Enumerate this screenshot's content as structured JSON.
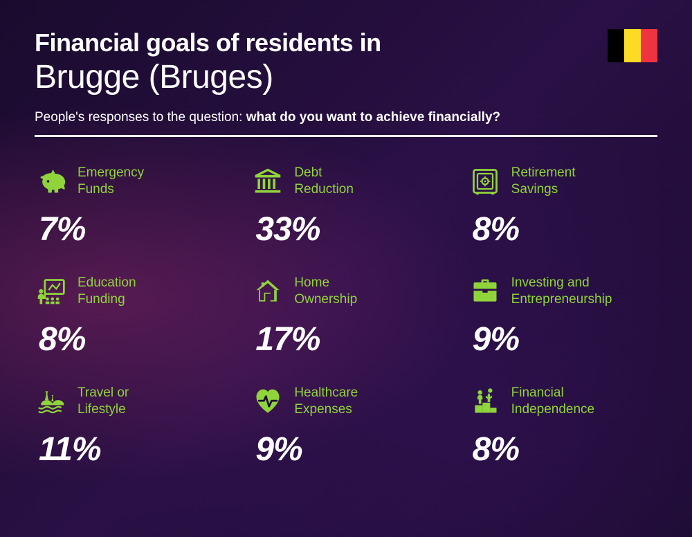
{
  "colors": {
    "accent": "#8fd43a",
    "text": "#ffffff",
    "flag": [
      "#000000",
      "#fdda24",
      "#ef3340"
    ]
  },
  "header": {
    "title_prefix": "Financial goals of residents in",
    "city": "Brugge (Bruges)",
    "subtitle_lead": "People's responses to the question: ",
    "subtitle_bold": "what do you want to achieve financially?"
  },
  "items": [
    {
      "icon": "piggy",
      "label": "Emergency Funds",
      "value": "7%"
    },
    {
      "icon": "bank",
      "label": "Debt Reduction",
      "value": "33%"
    },
    {
      "icon": "safe",
      "label": "Retirement Savings",
      "value": "8%"
    },
    {
      "icon": "education",
      "label": "Education Funding",
      "value": "8%"
    },
    {
      "icon": "home",
      "label": "Home Ownership",
      "value": "17%"
    },
    {
      "icon": "briefcase",
      "label": "Investing and Entrepreneurship",
      "value": "9%"
    },
    {
      "icon": "travel",
      "label": "Travel or Lifestyle",
      "value": "11%"
    },
    {
      "icon": "health",
      "label": "Healthcare Expenses",
      "value": "9%"
    },
    {
      "icon": "podium",
      "label": "Financial Independence",
      "value": "8%"
    }
  ]
}
